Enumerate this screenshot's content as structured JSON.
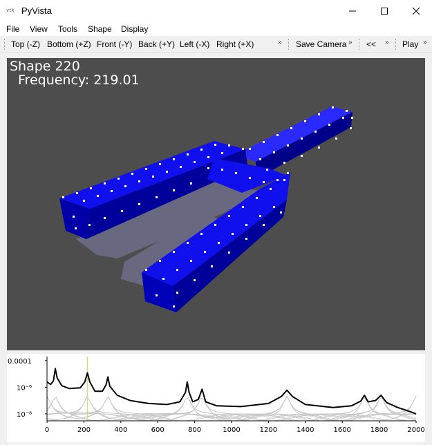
{
  "window": {
    "icon_text": "vtk",
    "title": "PyVista",
    "minimize_icon": "minimize-icon",
    "maximize_icon": "maximize-icon",
    "close_icon": "close-icon"
  },
  "menu": [
    "File",
    "View",
    "Tools",
    "Shape",
    "Display"
  ],
  "toolbar": {
    "views": [
      "Top (-Z)",
      "Bottom (+Z)",
      "Front (-Y)",
      "Back (+Y)",
      "Left (-X)",
      "Right (+X)"
    ],
    "more": "»",
    "save_camera": "Save Camera",
    "prev": "<<",
    "play": "Play"
  },
  "viewport": {
    "shape_label": "Shape 220",
    "frequency_label": "Frequency: 219.01",
    "background": "#4d4d4d",
    "mesh_color": "#0000dd",
    "node_color": "#ffffff"
  },
  "chart_data": {
    "type": "line",
    "title": "",
    "xlabel": "",
    "ylabel": "",
    "xlim": [
      0,
      2000
    ],
    "yscale": "log",
    "ylim": [
      3e-09,
      0.0002
    ],
    "xticks": [
      "0",
      "200",
      "400",
      "600",
      "800",
      "1000",
      "1200",
      "1400",
      "1600",
      "1800",
      "2000"
    ],
    "yticks": [
      "0.0001",
      "10⁻⁶",
      "10⁻⁸"
    ],
    "marker_x": 219,
    "series": [
      {
        "color": "#000000",
        "peaks_x": [
          0,
          45,
          219,
          330,
          760,
          840,
          1300,
          1720,
          1810,
          2000
        ],
        "x": [
          0,
          20,
          35,
          45,
          55,
          80,
          120,
          180,
          205,
          219,
          232,
          260,
          300,
          320,
          330,
          340,
          380,
          450,
          550,
          650,
          720,
          750,
          760,
          770,
          790,
          820,
          840,
          860,
          920,
          1050,
          1200,
          1270,
          1300,
          1330,
          1400,
          1550,
          1650,
          1700,
          1720,
          1740,
          1780,
          1810,
          1840,
          1900,
          1960,
          2000
        ],
        "y": [
          2.5e-06,
          1.6e-06,
          3e-06,
          2.5e-05,
          5e-06,
          1.3e-06,
          8e-07,
          9e-07,
          2.5e-06,
          1.2e-05,
          2.5e-06,
          5e-07,
          5e-07,
          1.5e-06,
          6e-06,
          1.2e-06,
          2.5e-07,
          1e-07,
          6e-08,
          5e-08,
          8e-08,
          4e-07,
          2.5e-06,
          4e-07,
          8e-08,
          1.2e-07,
          7e-07,
          8e-08,
          4e-08,
          3.5e-08,
          6e-08,
          2e-07,
          6e-07,
          2e-07,
          5e-08,
          3e-08,
          4e-08,
          9e-08,
          2.5e-07,
          8e-08,
          1e-07,
          2.5e-07,
          7e-08,
          3e-08,
          1.6e-08,
          1e-08
        ]
      }
    ]
  }
}
